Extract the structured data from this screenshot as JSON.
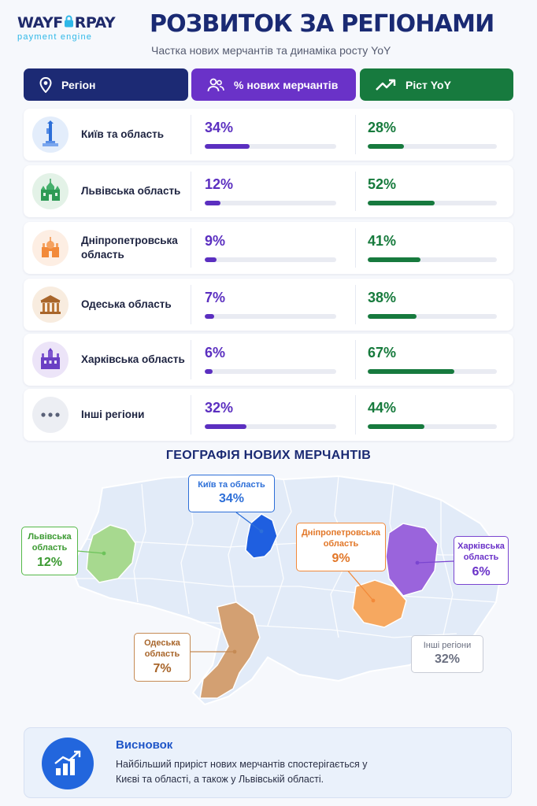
{
  "brand": {
    "name_left": "WAYF",
    "name_right": "RPAY",
    "tagline": "payment engine"
  },
  "title": "РОЗВИТОК ЗА РЕГІОНАМИ",
  "subtitle": "Частка нових мерчантів та динаміка росту YoY",
  "headers": {
    "region": "Регіон",
    "share": "% нових мерчантів",
    "growth": "Ріст YoY"
  },
  "colors": {
    "navy": "#1c2a74",
    "purple": "#6a32c8",
    "green": "#177a3e",
    "blue": "#2266dd"
  },
  "rows": [
    {
      "name": "Київ та область",
      "share_label": "34%",
      "share": 34,
      "growth_label": "28%",
      "growth": 28,
      "icon": "motherland-monument-icon"
    },
    {
      "name": "Львівська область",
      "share_label": "12%",
      "share": 12,
      "growth_label": "52%",
      "growth": 52,
      "icon": "lviv-church-icon"
    },
    {
      "name": "Дніпропетровська область",
      "share_label": "9%",
      "share": 9,
      "growth_label": "41%",
      "growth": 41,
      "icon": "dnipro-cathedral-icon"
    },
    {
      "name": "Одеська область",
      "share_label": "7%",
      "share": 7,
      "growth_label": "38%",
      "growth": 38,
      "icon": "odesa-theatre-icon"
    },
    {
      "name": "Харківська область",
      "share_label": "6%",
      "share": 6,
      "growth_label": "67%",
      "growth": 67,
      "icon": "kharkiv-building-icon"
    },
    {
      "name": "Інші регіони",
      "share_label": "32%",
      "share": 32,
      "growth_label": "44%",
      "growth": 44,
      "icon": "more-dots-icon"
    }
  ],
  "map": {
    "title": "ГЕОГРАФІЯ НОВИХ МЕРЧАНТІВ",
    "labels": {
      "kyiv": {
        "name": "Київ та область",
        "value": "34%"
      },
      "lviv": {
        "name_line1": "Львівська",
        "name_line2": "область",
        "value": "12%"
      },
      "dnipro": {
        "name_line1": "Дніпропетровська",
        "name_line2": "область",
        "value": "9%"
      },
      "kharkiv": {
        "name_line1": "Харківська",
        "name_line2": "область",
        "value": "6%"
      },
      "odesa": {
        "name_line1": "Одеська",
        "name_line2": "область",
        "value": "7%"
      },
      "other": {
        "name": "Інші регіони",
        "value": "32%"
      }
    }
  },
  "conclusion": {
    "title": "Висновок",
    "text": "Найбільший приріст нових мерчантів спостерігається у Києві та області, а також у Львівській області."
  }
}
